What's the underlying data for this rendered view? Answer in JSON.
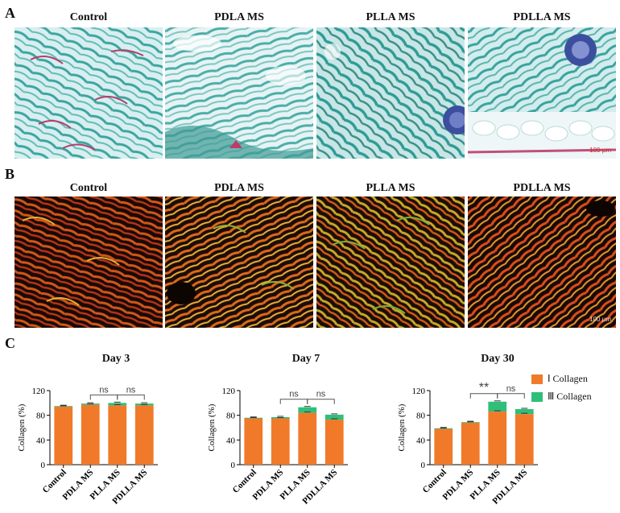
{
  "panels": {
    "a": "A",
    "b": "B",
    "c": "C"
  },
  "row_a": {
    "labels": [
      "Control",
      "PDLA MS",
      "PLLA MS",
      "PDLLA MS"
    ],
    "scale_bar": "100 μm"
  },
  "row_b": {
    "labels": [
      "Control",
      "PDLA MS",
      "PLLA MS",
      "PDLLA MS"
    ],
    "scale_bar": "100 μm"
  },
  "colors": {
    "type_i": "#f07a2a",
    "type_iii": "#2fbf7a",
    "teal": "#3aa6a0",
    "pink": "#c0507a"
  },
  "legend": {
    "type_i": "Ⅰ  Collagen",
    "type_iii": "Ⅲ Collagen"
  },
  "chart_data": [
    {
      "type": "bar",
      "stacked": true,
      "title": "Day 3",
      "categories": [
        "Control",
        "PDLA MS",
        "PLLA MS",
        "PDLLA MS"
      ],
      "ylabel": "Collagen (%)",
      "xlabel": "",
      "ylim": [
        0,
        120
      ],
      "yticks": [
        0,
        40,
        80,
        120
      ],
      "series": [
        {
          "name": "Ⅰ  Collagen",
          "values": [
            94,
            97,
            96,
            96
          ]
        },
        {
          "name": "Ⅲ Collagen",
          "values": [
            1,
            2,
            4,
            3
          ]
        }
      ],
      "comparisons": [
        {
          "from": "PDLA MS",
          "to": "PLLA MS",
          "label": "ns"
        },
        {
          "from": "PLLA MS",
          "to": "PDLLA MS",
          "label": "ns"
        }
      ]
    },
    {
      "type": "bar",
      "stacked": true,
      "title": "Day 7",
      "categories": [
        "Control",
        "PDLA MS",
        "PLLA MS",
        "PDLLA MS"
      ],
      "ylabel": "Collagen (%)",
      "xlabel": "",
      "ylim": [
        0,
        120
      ],
      "yticks": [
        0,
        40,
        80,
        120
      ],
      "series": [
        {
          "name": "Ⅰ  Collagen",
          "values": [
            75,
            75,
            84,
            73
          ]
        },
        {
          "name": "Ⅲ Collagen",
          "values": [
            1,
            2,
            9,
            8
          ]
        }
      ],
      "comparisons": [
        {
          "from": "PDLA MS",
          "to": "PLLA MS",
          "label": "ns"
        },
        {
          "from": "PLLA MS",
          "to": "PDLLA MS",
          "label": "ns"
        }
      ]
    },
    {
      "type": "bar",
      "stacked": true,
      "title": "Day 30",
      "categories": [
        "Control",
        "PDLA MS",
        "PLLA MS",
        "PDLLA MS"
      ],
      "ylabel": "Collagen (%)",
      "xlabel": "",
      "ylim": [
        0,
        120
      ],
      "yticks": [
        0,
        40,
        80,
        120
      ],
      "series": [
        {
          "name": "Ⅰ  Collagen",
          "values": [
            58,
            68,
            86,
            82
          ]
        },
        {
          "name": "Ⅲ Collagen",
          "values": [
            1,
            1,
            16,
            8
          ]
        }
      ],
      "comparisons": [
        {
          "from": "PDLA MS",
          "to": "PLLA MS",
          "label": "**"
        },
        {
          "from": "PLLA MS",
          "to": "PDLLA MS",
          "label": "ns"
        }
      ]
    }
  ]
}
